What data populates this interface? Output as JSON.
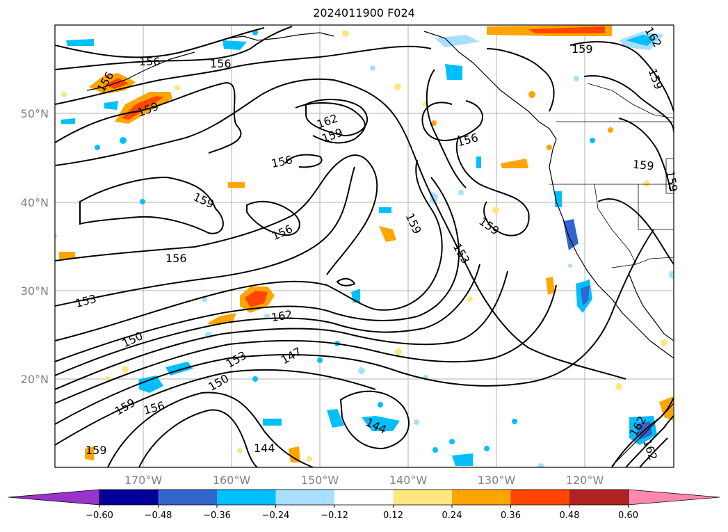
{
  "title": "2024011900 F024",
  "lat_labels": [
    "50°N",
    "40°N",
    "30°N",
    "20°N"
  ],
  "lon_labels": [
    "170°W",
    "160°W",
    "150°W",
    "140°W",
    "130°W",
    "120°W"
  ],
  "colorbar": {
    "ticks": [
      "−0.60",
      "−0.48",
      "−0.36",
      "−0.24",
      "−0.12",
      "0.12",
      "0.24",
      "0.36",
      "0.48",
      "0.60"
    ],
    "colors": [
      "#9933cc",
      "#000099",
      "#3366cc",
      "#00bfff",
      "#a8dfff",
      "#ffffff",
      "#ffe680",
      "#ffa500",
      "#ff4500",
      "#b22222",
      "#ff88aa"
    ]
  },
  "contour_labels": [
    "156",
    "156",
    "156",
    "159",
    "162",
    "159",
    "156",
    "159",
    "156",
    "156",
    "153",
    "162",
    "150",
    "153",
    "147",
    "150",
    "159",
    "156",
    "144",
    "144",
    "159",
    "159",
    "159",
    "159",
    "159",
    "153",
    "162",
    "159",
    "159",
    "156",
    "162",
    "162"
  ]
}
